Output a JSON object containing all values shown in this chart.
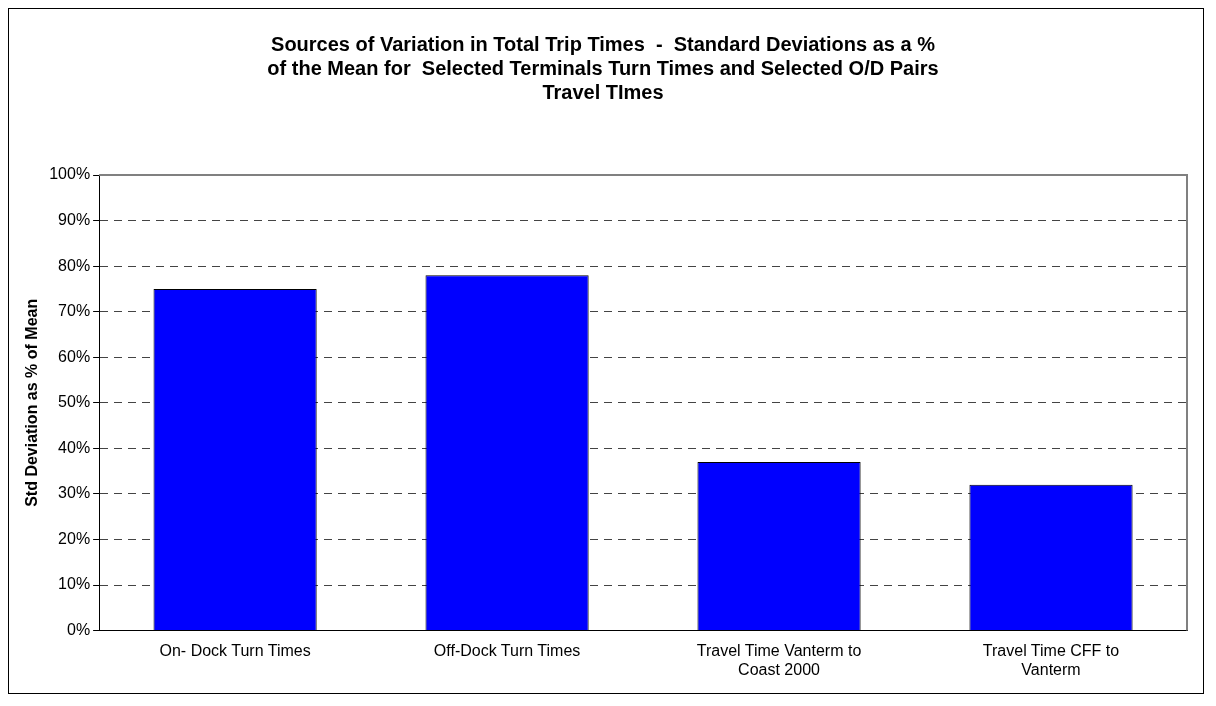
{
  "chart_data": {
    "type": "bar",
    "title": "Sources of Variation in Total Trip Times  -  Standard Deviations as a % of the Mean for  Selected Terminals Turn Times and Selected O/D Pairs Travel TImes",
    "ylabel": "Std Deviation as % of Mean",
    "categories": [
      "On- Dock Turn Times",
      "Off-Dock Turn Times",
      "Travel Time Vanterm to Coast 2000",
      "Travel Time CFF to Vanterm"
    ],
    "values": [
      75,
      78,
      37,
      32
    ],
    "color": "#0000ff",
    "ylim": [
      0,
      100
    ],
    "yticks": [
      {
        "value": 0,
        "label": "0%"
      },
      {
        "value": 10,
        "label": "10%"
      },
      {
        "value": 20,
        "label": "20%"
      },
      {
        "value": 30,
        "label": "30%"
      },
      {
        "value": 40,
        "label": "40%"
      },
      {
        "value": 50,
        "label": "50%"
      },
      {
        "value": 60,
        "label": "60%"
      },
      {
        "value": 70,
        "label": "70%"
      },
      {
        "value": 80,
        "label": "80%"
      },
      {
        "value": 90,
        "label": "90%"
      },
      {
        "value": 100,
        "label": "100%"
      }
    ],
    "grid": "y",
    "legend": false
  }
}
